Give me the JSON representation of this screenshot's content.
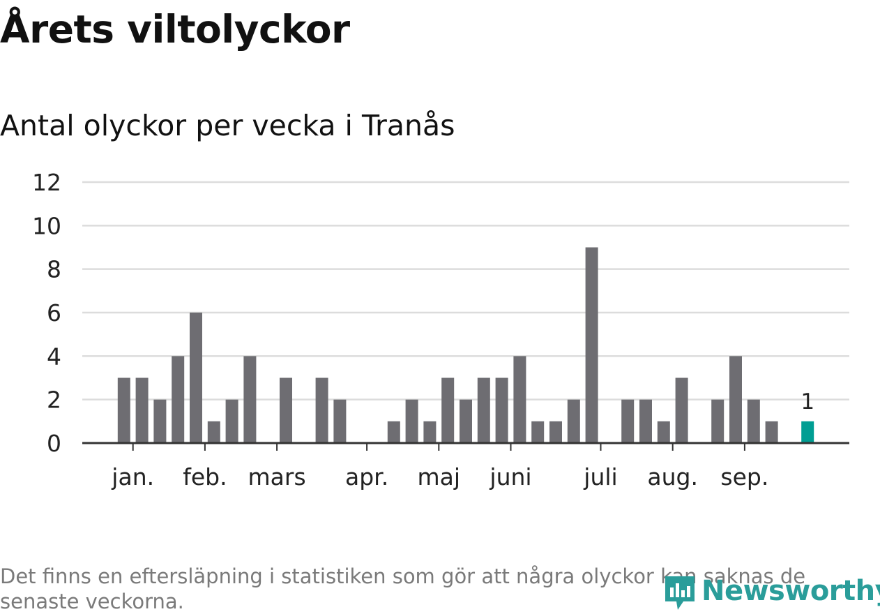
{
  "title": "Årets viltolyckor",
  "subtitle": "Antal olyckor per vecka i Tranås",
  "footnote": "Det finns en eftersläpning i statistiken som gör att några olyckor kan saknas de senaste veckorna.",
  "logo_text": "Newsworthy",
  "colors": {
    "bar": "#6e6d72",
    "highlight": "#009e93",
    "grid": "#dcdcdc",
    "axis": "#333333",
    "text": "#222222"
  },
  "chart_data": {
    "type": "bar",
    "title": "Antal olyckor per vecka i Tranås",
    "xlabel": "",
    "ylabel": "",
    "ylim": [
      0,
      12
    ],
    "yticks": [
      0,
      2,
      4,
      6,
      8,
      10,
      12
    ],
    "grid": true,
    "values": [
      3,
      3,
      2,
      4,
      6,
      1,
      2,
      4,
      0,
      3,
      0,
      3,
      2,
      0,
      0,
      1,
      2,
      1,
      3,
      2,
      3,
      3,
      4,
      1,
      1,
      2,
      9,
      0,
      2,
      2,
      1,
      3,
      0,
      2,
      4,
      2,
      1,
      0,
      1
    ],
    "highlight_index": 38,
    "highlight_label": "1",
    "month_labels": [
      {
        "label": "jan.",
        "week": 0.5
      },
      {
        "label": "feb.",
        "week": 4.5
      },
      {
        "label": "mars",
        "week": 8.5
      },
      {
        "label": "apr.",
        "week": 13.5
      },
      {
        "label": "maj",
        "week": 17.5
      },
      {
        "label": "juni",
        "week": 21.5
      },
      {
        "label": "juli",
        "week": 26.5
      },
      {
        "label": "aug.",
        "week": 30.5
      },
      {
        "label": "sep.",
        "week": 34.5
      }
    ]
  }
}
